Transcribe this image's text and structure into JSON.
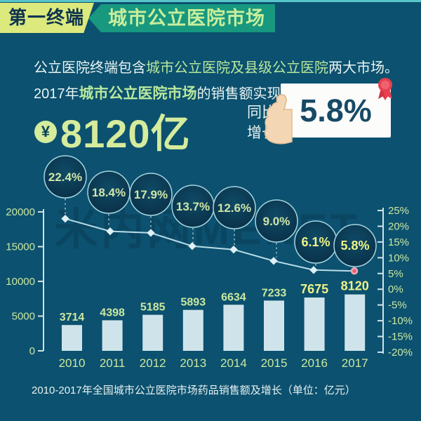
{
  "page": {
    "bg": "#0C516F"
  },
  "header": {
    "badge_label": "第一终端",
    "title": "城市公立医院市场"
  },
  "intro": {
    "pre": "公立医院终端包含",
    "highlight": "城市公立医院及县级公立医院",
    "post": "两大市场。"
  },
  "headline": {
    "pre": "2017年",
    "highlight": "城市公立医院市场",
    "post": "的销售额实现",
    "currency_symbol": "¥",
    "amount": "8120亿",
    "growth_label_line1": "同比",
    "growth_label_line2": "增长",
    "growth_value": "5.8%"
  },
  "watermark": "米内网MENET",
  "caption": "2010-2017年全国城市公立医院市场药品销售额及增长（单位：亿元）",
  "chart_data": {
    "type": "combo",
    "categories": [
      "2010",
      "2011",
      "2012",
      "2013",
      "2014",
      "2015",
      "2016",
      "2017"
    ],
    "series": [
      {
        "name": "药品销售额（亿元）",
        "type": "bar",
        "values": [
          3714,
          4398,
          5185,
          5893,
          6634,
          7233,
          7675,
          8120
        ],
        "emphasized_from_index": 6
      },
      {
        "name": "同比增长",
        "type": "line",
        "values": [
          22.4,
          18.4,
          17.9,
          13.7,
          12.6,
          9.0,
          6.1,
          5.8
        ],
        "labels": [
          "22.4%",
          "18.4%",
          "17.9%",
          "13.7%",
          "12.6%",
          "9.0%",
          "6.1%",
          "5.8%"
        ],
        "emphasized_from_index": 6
      }
    ],
    "left_axis": {
      "ticks": [
        "20000",
        "15000",
        "10000",
        "5000",
        "0"
      ],
      "min": 0,
      "max": 20000
    },
    "right_axis": {
      "ticks": [
        "25%",
        "20%",
        "15%",
        "10%",
        "5%",
        "0%",
        "-5%",
        "-10%",
        "-15%",
        "-20%"
      ],
      "min": -20,
      "max": 25
    },
    "grid": false,
    "legend": "none",
    "colors": {
      "bar": "#CFE4EA",
      "line": "#B8DDE9",
      "marker": "#DFF0F6",
      "last_point": "#E85F6E",
      "last_point_ring": "#F2A9B4",
      "label_green": "#CBE8A0",
      "label_emphasis": "#EEF387",
      "bubble_fill_inner": "#0F4A66",
      "bubble_fill_outer": "#092D44",
      "bubble_border": "#A5D5E0",
      "axis": "#CFE3EA"
    }
  }
}
